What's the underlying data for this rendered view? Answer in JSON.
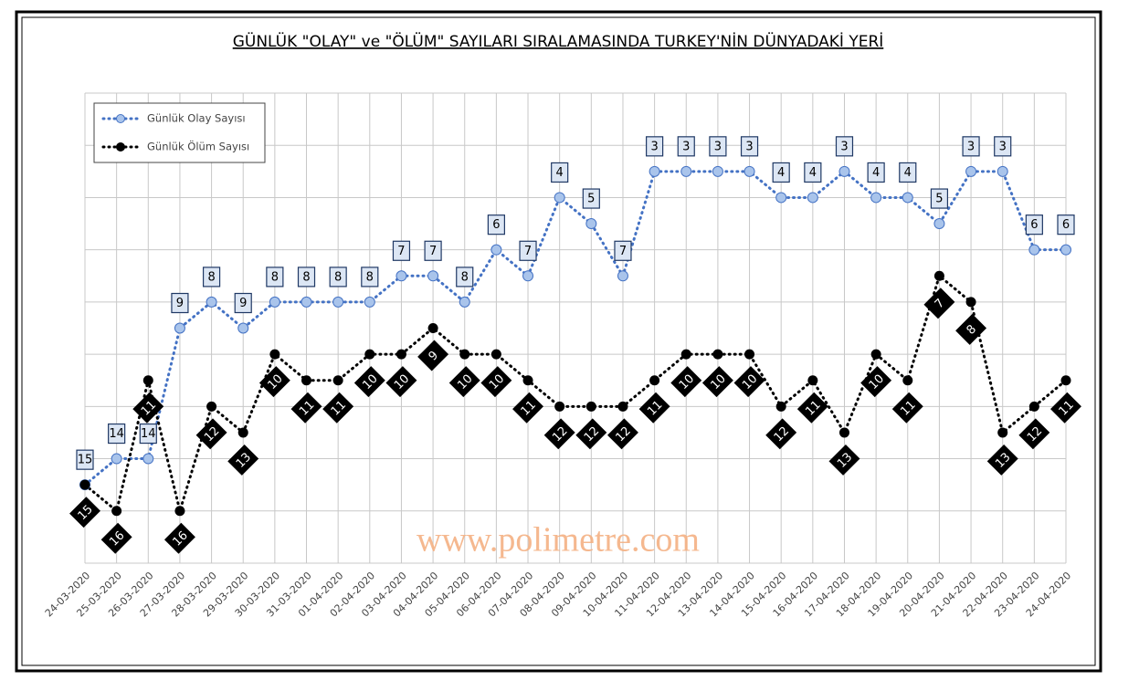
{
  "chart_data": {
    "type": "line",
    "title": "GÜNLÜK \"OLAY\" ve \"ÖLÜM\" SAYILARI SIRALAMASINDA TURKEY'NİN DÜNYADAKİ YERİ",
    "watermark": "www.polimetre.com",
    "categories": [
      "24-03-2020",
      "25-03-2020",
      "26-03-2020",
      "27-03-2020",
      "28-03-2020",
      "29-03-2020",
      "30-03-2020",
      "31-03-2020",
      "01-04-2020",
      "02-04-2020",
      "03-04-2020",
      "04-04-2020",
      "05-04-2020",
      "06-04-2020",
      "07-04-2020",
      "08-04-2020",
      "09-04-2020",
      "10-04-2020",
      "11-04-2020",
      "12-04-2020",
      "13-04-2020",
      "14-04-2020",
      "15-04-2020",
      "16-04-2020",
      "17-04-2020",
      "18-04-2020",
      "19-04-2020",
      "20-04-2020",
      "21-04-2020",
      "22-04-2020",
      "23-04-2020",
      "24-04-2020"
    ],
    "series": [
      {
        "name": "Günlük Olay Sayısı",
        "color": "#4472c4",
        "values": [
          15,
          14,
          14,
          9,
          8,
          9,
          8,
          8,
          8,
          8,
          7,
          7,
          8,
          6,
          7,
          4,
          5,
          7,
          3,
          3,
          3,
          3,
          4,
          4,
          3,
          4,
          4,
          5,
          3,
          3,
          6,
          6
        ]
      },
      {
        "name": "Günlük Ölüm Sayısı",
        "color": "#000000",
        "values": [
          15,
          16,
          11,
          16,
          12,
          13,
          10,
          11,
          11,
          10,
          10,
          9,
          10,
          10,
          11,
          12,
          12,
          12,
          11,
          10,
          10,
          10,
          12,
          11,
          13,
          10,
          11,
          7,
          8,
          13,
          12,
          11
        ]
      }
    ],
    "ylim": [
      0,
      18
    ],
    "y_inverted": true,
    "yticks": [
      0,
      2,
      4,
      6,
      8,
      10,
      12,
      14,
      16,
      18
    ],
    "grid": true,
    "legend": "top-left"
  }
}
